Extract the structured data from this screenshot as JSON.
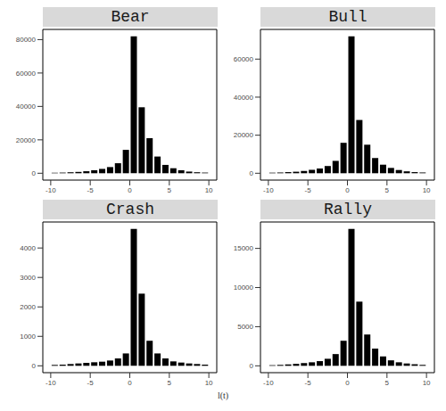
{
  "chart_data": [
    {
      "type": "histogram",
      "title": "Bear",
      "color": "#000000",
      "bins": [
        -10,
        -9,
        -8,
        -7,
        -6,
        -5,
        -4,
        -3,
        -2,
        -1,
        0,
        1,
        2,
        3,
        4,
        5,
        6,
        7,
        8,
        9,
        10
      ],
      "counts": [
        300,
        400,
        600,
        800,
        1200,
        1800,
        2600,
        3700,
        6000,
        14000,
        82000,
        39500,
        21000,
        10000,
        5000,
        3000,
        1800,
        1000,
        600,
        400
      ],
      "xlim": [
        -11,
        11
      ],
      "xticks": [
        -10,
        -5,
        0,
        5,
        10
      ],
      "ylim": [
        -4100,
        86100
      ],
      "yticks": [
        0,
        20000,
        40000,
        60000,
        80000
      ]
    },
    {
      "type": "histogram",
      "title": "Bull",
      "color": "#000000",
      "bins": [
        -10,
        -9,
        -8,
        -7,
        -6,
        -5,
        -4,
        -3,
        -2,
        -1,
        0,
        1,
        2,
        3,
        4,
        5,
        6,
        7,
        8,
        9,
        10
      ],
      "counts": [
        300,
        400,
        600,
        800,
        1200,
        1800,
        2500,
        3800,
        6500,
        16000,
        72000,
        28000,
        15000,
        8000,
        4500,
        2800,
        1700,
        1000,
        600,
        400
      ],
      "xlim": [
        -11,
        11
      ],
      "xticks": [
        -10,
        -5,
        0,
        5,
        10
      ],
      "ylim": [
        -3600,
        75600
      ],
      "yticks": [
        0,
        20000,
        40000,
        60000
      ]
    },
    {
      "type": "histogram",
      "title": "Crash",
      "color": "#000000",
      "bins": [
        -10,
        -9,
        -8,
        -7,
        -6,
        -5,
        -4,
        -3,
        -2,
        -1,
        0,
        1,
        2,
        3,
        4,
        5,
        6,
        7,
        8,
        9,
        10
      ],
      "counts": [
        30,
        40,
        60,
        80,
        100,
        120,
        140,
        180,
        250,
        420,
        4650,
        2450,
        850,
        420,
        250,
        150,
        110,
        80,
        60,
        40
      ],
      "xlim": [
        -11,
        11
      ],
      "xticks": [
        -10,
        -5,
        0,
        5,
        10
      ],
      "ylim": [
        -233,
        4883
      ],
      "yticks": [
        0,
        1000,
        2000,
        3000,
        4000
      ]
    },
    {
      "type": "histogram",
      "title": "Rally",
      "color": "#000000",
      "bins": [
        -10,
        -9,
        -8,
        -7,
        -6,
        -5,
        -4,
        -3,
        -2,
        -1,
        0,
        1,
        2,
        3,
        4,
        5,
        6,
        7,
        8,
        9,
        10
      ],
      "counts": [
        80,
        120,
        180,
        250,
        350,
        450,
        600,
        900,
        1500,
        3200,
        17500,
        8200,
        4000,
        2200,
        1200,
        700,
        450,
        300,
        200,
        120
      ],
      "xlim": [
        -11,
        11
      ],
      "xticks": [
        -10,
        -5,
        0,
        5,
        10
      ],
      "ylim": [
        -875,
        18375
      ],
      "yticks": [
        0,
        5000,
        10000,
        15000
      ]
    }
  ],
  "xlabel": "l(t)"
}
